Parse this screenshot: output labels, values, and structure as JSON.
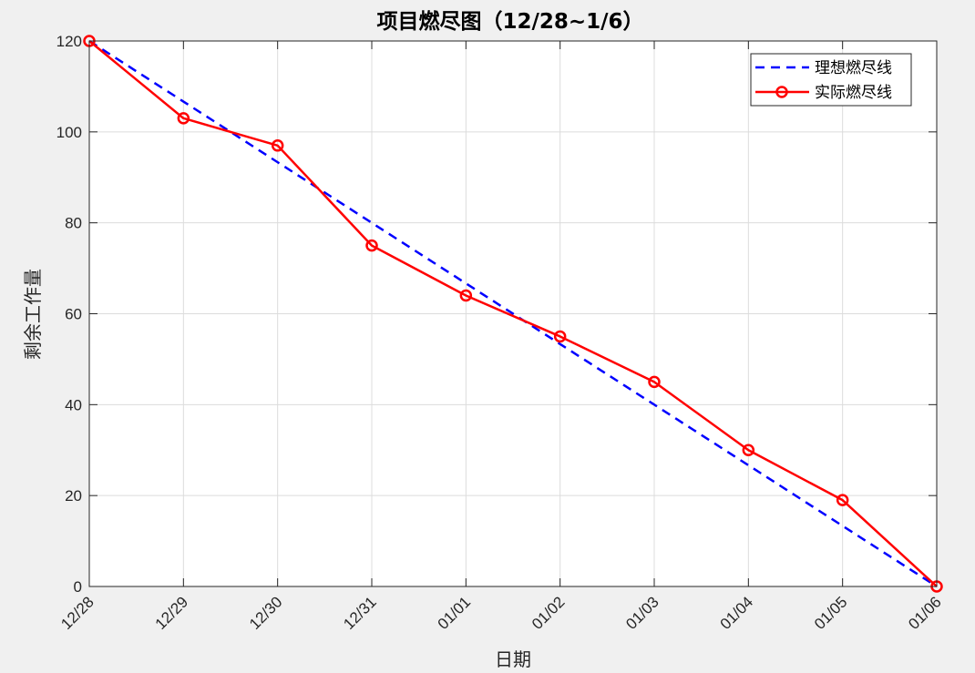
{
  "chart_data": {
    "type": "line",
    "title": "项目燃尽图（12/28~1/6）",
    "xlabel": "日期",
    "ylabel": "剩余工作量",
    "categories": [
      "12/28",
      "12/29",
      "12/30",
      "12/31",
      "01/01",
      "01/02",
      "01/03",
      "01/04",
      "01/05",
      "01/06"
    ],
    "series": [
      {
        "name": "理想燃尽线",
        "style": "dashed",
        "color": "#0000ff",
        "marker": "none",
        "values": [
          120,
          106.67,
          93.33,
          80,
          66.67,
          53.33,
          40,
          26.67,
          13.33,
          0
        ]
      },
      {
        "name": "实际燃尽线",
        "style": "solid",
        "color": "#ff0000",
        "marker": "circle",
        "values": [
          120,
          103,
          97,
          75,
          64,
          55,
          45,
          30,
          19,
          0
        ]
      }
    ],
    "ylim": [
      0,
      120
    ],
    "yticks": [
      0,
      20,
      40,
      60,
      80,
      100,
      120
    ],
    "grid": true,
    "legend_position": "northeast"
  }
}
